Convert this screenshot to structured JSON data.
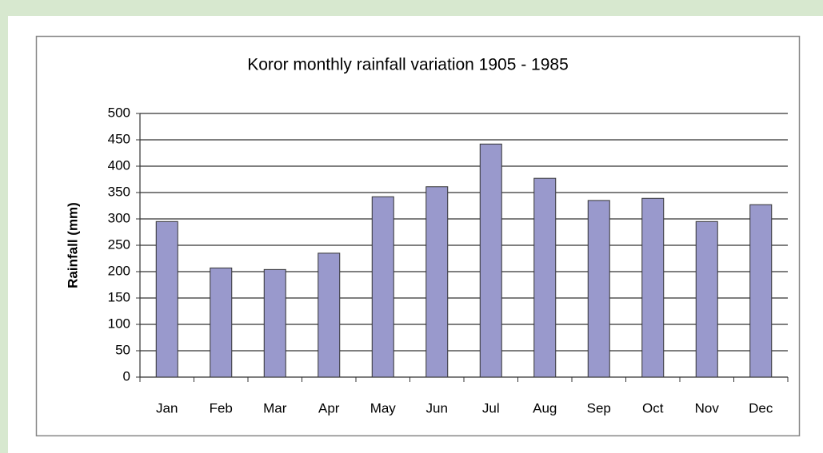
{
  "chart_data": {
    "type": "bar",
    "title": "Koror monthly rainfall variation 1905 - 1985",
    "y_label": "Rainfall (mm)",
    "categories": [
      "Jan",
      "Feb",
      "Mar",
      "Apr",
      "May",
      "Jun",
      "Jul",
      "Aug",
      "Sep",
      "Oct",
      "Nov",
      "Dec"
    ],
    "values": [
      295,
      207,
      204,
      235,
      342,
      361,
      442,
      377,
      335,
      339,
      295,
      327
    ],
    "color": "#9999cc",
    "ylim": [
      0,
      500
    ],
    "yticks": [
      0,
      50,
      100,
      150,
      200,
      250,
      300,
      350,
      400,
      450,
      500
    ],
    "grid": true
  }
}
